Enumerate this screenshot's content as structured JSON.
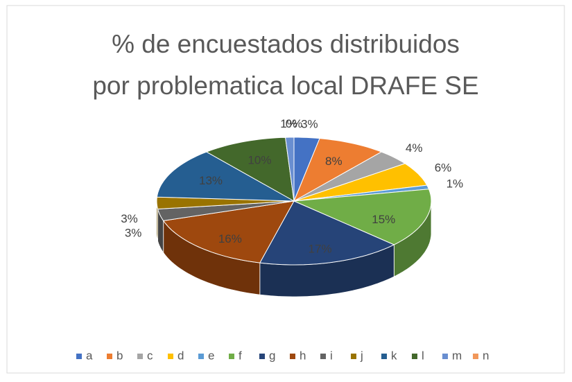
{
  "chart_data": {
    "type": "pie3d",
    "title": [
      "% de encuestados distribuidos",
      "por problematica local DRAFE SE"
    ],
    "categories": [
      "a",
      "b",
      "c",
      "d",
      "e",
      "f",
      "g",
      "h",
      "i",
      "j",
      "k",
      "l",
      "m",
      "n"
    ],
    "values": [
      3,
      8,
      4,
      6,
      1,
      15,
      17,
      16,
      3,
      3,
      13,
      10,
      1,
      0
    ],
    "value_labels": [
      "3%",
      "8%",
      "4%",
      "6%",
      "1%",
      "15%",
      "17%",
      "16%",
      "3%",
      "3%",
      "13%",
      "10%",
      "1%",
      "0%"
    ],
    "colors": [
      "#4472c4",
      "#ed7d31",
      "#a5a5a5",
      "#ffc000",
      "#5b9bd5",
      "#70ad47",
      "#264478",
      "#9e480e",
      "#636363",
      "#997300",
      "#255e91",
      "#43682b",
      "#698ed0",
      "#f1975a"
    ],
    "legend": "bottom"
  }
}
